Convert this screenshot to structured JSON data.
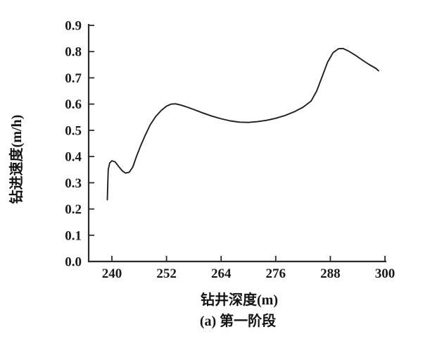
{
  "figure": {
    "background": "#ffffff",
    "curve_color": "#1f1f1f",
    "axis_color": "#2b2b2b",
    "text_color": "#1a1a1a"
  },
  "chart_data": {
    "type": "line",
    "title": "",
    "xlabel": "钻井深度(m)",
    "ylabel": "钻进速度(m/h)",
    "caption": "(a) 第一阶段",
    "xlim": [
      237,
      300
    ],
    "ylim": [
      0.0,
      0.9
    ],
    "x_ticks": [
      240,
      252,
      264,
      276,
      288,
      300
    ],
    "y_ticks": [
      "0.0",
      "0.1",
      "0.2",
      "0.3",
      "0.4",
      "0.5",
      "0.6",
      "0.7",
      "0.8",
      "0.9"
    ],
    "grid": false,
    "legend_position": "none",
    "points": [
      [
        239.0,
        0.235
      ],
      [
        239.1,
        0.3
      ],
      [
        239.2,
        0.35
      ],
      [
        239.5,
        0.375
      ],
      [
        240.0,
        0.384
      ],
      [
        240.7,
        0.38
      ],
      [
        241.5,
        0.362
      ],
      [
        242.3,
        0.345
      ],
      [
        243.0,
        0.337
      ],
      [
        243.8,
        0.34
      ],
      [
        244.6,
        0.36
      ],
      [
        245.4,
        0.4
      ],
      [
        246.3,
        0.44
      ],
      [
        247.3,
        0.48
      ],
      [
        248.4,
        0.52
      ],
      [
        249.6,
        0.552
      ],
      [
        250.8,
        0.575
      ],
      [
        252.0,
        0.592
      ],
      [
        253.0,
        0.6
      ],
      [
        254.0,
        0.601
      ],
      [
        255.2,
        0.596
      ],
      [
        256.6,
        0.588
      ],
      [
        258.2,
        0.578
      ],
      [
        260.0,
        0.566
      ],
      [
        262.0,
        0.554
      ],
      [
        264.0,
        0.544
      ],
      [
        266.0,
        0.536
      ],
      [
        268.0,
        0.531
      ],
      [
        270.0,
        0.53
      ],
      [
        272.0,
        0.533
      ],
      [
        274.0,
        0.538
      ],
      [
        276.0,
        0.546
      ],
      [
        278.0,
        0.556
      ],
      [
        280.0,
        0.57
      ],
      [
        282.0,
        0.588
      ],
      [
        283.8,
        0.612
      ],
      [
        285.0,
        0.65
      ],
      [
        286.2,
        0.705
      ],
      [
        287.4,
        0.76
      ],
      [
        288.6,
        0.796
      ],
      [
        289.8,
        0.811
      ],
      [
        290.8,
        0.812
      ],
      [
        292.0,
        0.802
      ],
      [
        293.5,
        0.786
      ],
      [
        295.0,
        0.768
      ],
      [
        296.5,
        0.751
      ],
      [
        298.0,
        0.736
      ],
      [
        298.6,
        0.727
      ]
    ]
  }
}
